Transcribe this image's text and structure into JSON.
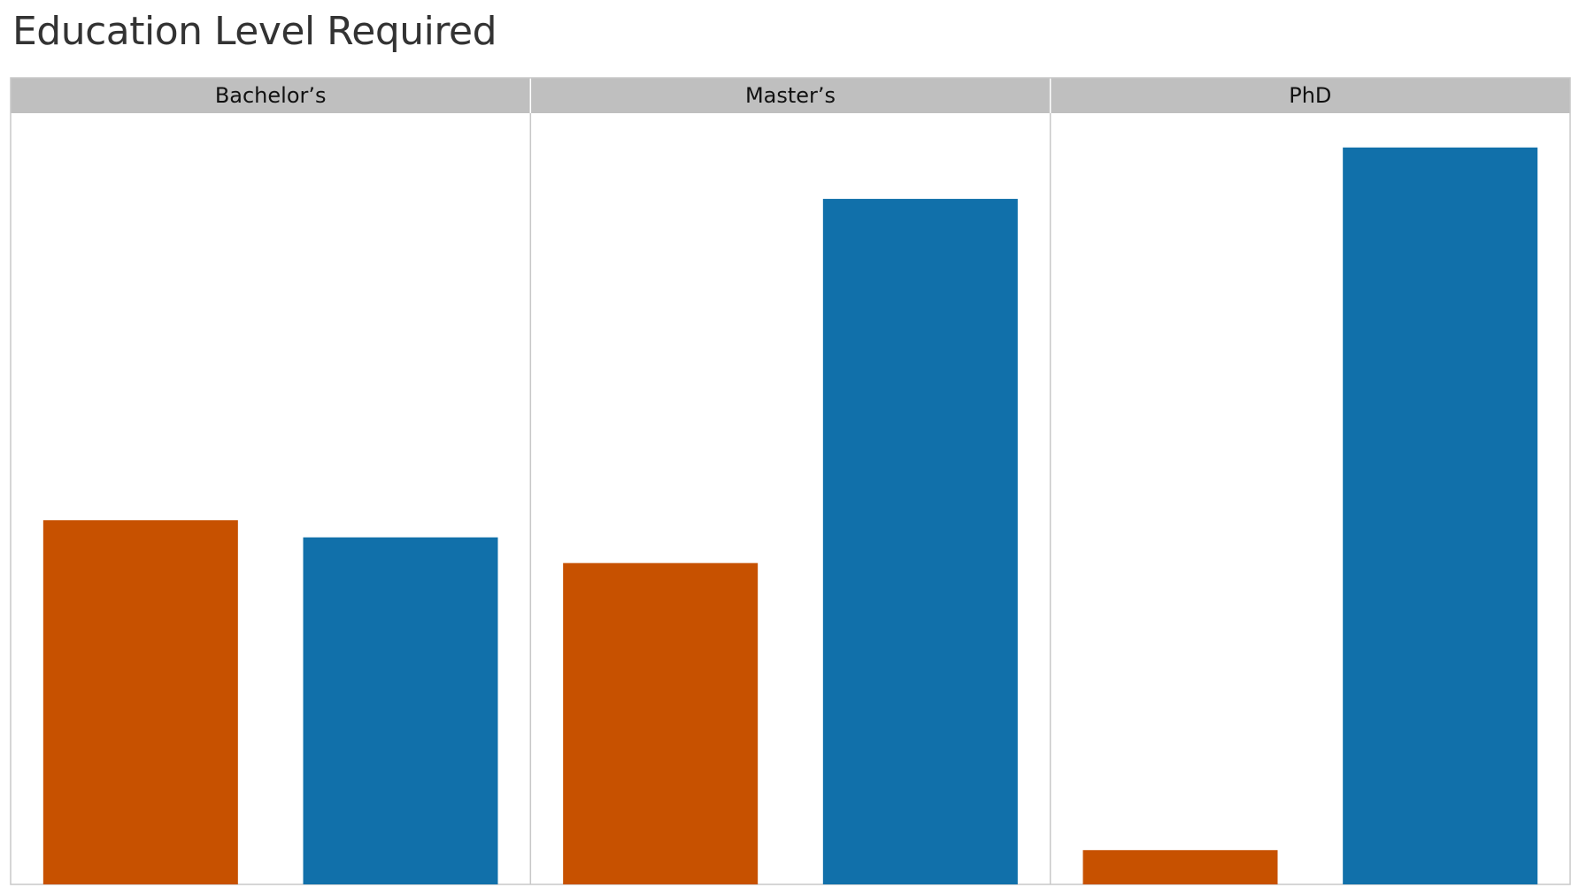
{
  "chart_data": {
    "type": "bar",
    "title": "Education Level Required",
    "facets": [
      "Bachelor’s",
      "Master’s",
      "PhD"
    ],
    "series": [
      {
        "color": "#c75100",
        "values": [
          42.5,
          37.5,
          4
        ]
      },
      {
        "color": "#1170aa",
        "values": [
          40.5,
          80,
          86
        ]
      }
    ],
    "ylim": [
      0,
      90
    ],
    "grid": false,
    "legend": "none",
    "header_color": "#bfbfbf",
    "border_color": "#c8c8c8"
  }
}
